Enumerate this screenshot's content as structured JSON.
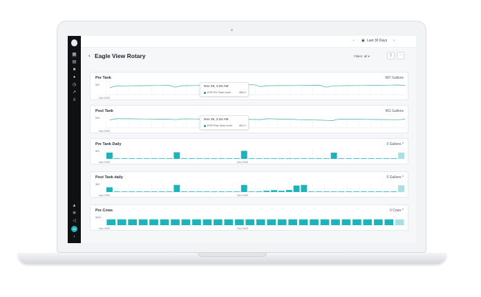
{
  "sidebar": {
    "icons": [
      "grid-icon",
      "inbox-icon",
      "alert-icon",
      "map-pin-icon",
      "clock-icon",
      "trend-icon",
      "list-icon",
      "bell-icon",
      "settings-icon",
      "megaphone-icon"
    ],
    "avatar": "JH",
    "expand": "›"
  },
  "topbar": {
    "range_label": "Last 30 Days",
    "prev": "‹",
    "next": "›"
  },
  "header": {
    "back": "‹",
    "title": "Eagle View Rotary",
    "filter_label": "Filters: all ▾"
  },
  "cards": [
    {
      "title": "Pre Tank",
      "value": "687 Gallons",
      "ytick": "800",
      "xticks": [
        "Nov 2020"
      ],
      "tooltip": {
        "time": "Nov 26, 2:20 AM",
        "label": "EVR Pre Tank Level",
        "value": "495.0"
      }
    },
    {
      "title": "Post Tank",
      "value": "401 Gallons",
      "ytick": "500",
      "xticks": [
        "Nov 2020"
      ],
      "tooltip": {
        "time": "Nov 26, 2:20 AM",
        "label": "EVR Post Tank Level",
        "value": "401.0"
      }
    },
    {
      "title": "Pre Tank Daily",
      "value": "0 Gallons *",
      "ytick": "800",
      "xticks": [
        "Nov 2020",
        "Dec 2020"
      ]
    },
    {
      "title": "Post Tank daily",
      "value": "0 Gallons *",
      "ytick": "380",
      "xticks": [
        "Nov 2020",
        "Dec 2020"
      ]
    },
    {
      "title": "Pre Cows",
      "value": "0 Cows *",
      "ytick": "8000",
      "xticks": [
        "Nov 2020",
        "Dec 2020"
      ]
    }
  ],
  "chart_data": [
    {
      "type": "line",
      "title": "Pre Tank",
      "ylim": [
        0,
        800
      ],
      "series": [
        {
          "values": [
            560,
            700,
            705,
            711,
            716,
            722,
            727,
            733,
            738,
            744,
            600,
            714,
            722,
            729,
            736,
            743,
            751,
            758,
            765,
            772,
            779,
            786,
            793,
            640,
            713,
            718,
            723,
            728,
            733,
            738,
            743,
            748,
            753,
            600,
            703,
            710,
            717,
            724,
            731,
            738,
            745,
            752,
            759,
            766,
            773,
            740
          ]
        }
      ]
    },
    {
      "type": "line",
      "title": "Post Tank",
      "ylim": [
        0,
        500
      ],
      "series": [
        {
          "values": [
            395,
            455,
            452,
            449,
            446,
            443,
            440,
            437,
            434,
            431,
            410,
            448,
            445,
            442,
            439,
            436,
            433,
            430,
            427,
            424,
            421,
            418,
            415,
            412,
            455,
            446,
            437,
            428,
            419,
            410,
            401,
            392,
            383,
            374,
            365,
            440,
            436,
            432,
            428,
            424,
            420,
            416,
            412,
            408,
            404,
            430
          ]
        }
      ]
    },
    {
      "type": "bar",
      "title": "Pre Tank Daily",
      "ylim": [
        0,
        800
      ],
      "values": [
        650,
        10,
        10,
        10,
        10,
        10,
        10,
        10,
        10,
        680,
        10,
        10,
        10,
        10,
        10,
        10,
        10,
        10,
        830,
        10,
        10,
        10,
        10,
        10,
        10,
        10,
        10,
        10,
        10,
        10,
        640,
        10,
        10,
        10,
        10,
        10,
        10,
        10,
        10,
        650
      ],
      "last_highlight": true
    },
    {
      "type": "bar",
      "title": "Post Tank daily",
      "ylim": [
        0,
        380
      ],
      "values": [
        230,
        10,
        10,
        10,
        10,
        10,
        10,
        10,
        10,
        350,
        10,
        10,
        10,
        10,
        10,
        10,
        10,
        10,
        350,
        10,
        30,
        60,
        90,
        60,
        100,
        320,
        350,
        10,
        10,
        10,
        10,
        10,
        10,
        10,
        10,
        10,
        10,
        10,
        10,
        330
      ],
      "last_highlight": true
    },
    {
      "type": "bar",
      "title": "Pre Cows",
      "ylim": [
        0,
        8000
      ],
      "values": [
        6000,
        6000,
        6000,
        6000,
        6000,
        6000,
        6000,
        6000,
        6000,
        6000,
        6000,
        6000,
        6000,
        6000,
        6000,
        6000,
        6000,
        6000,
        6000,
        6000,
        6000,
        6000,
        6000,
        6000,
        6000,
        6000,
        6000,
        6000
      ],
      "last_highlight": true
    }
  ],
  "colors": {
    "accent": "#1eb2bb",
    "accent_light": "#a9dfe3",
    "line": "#3da7b0",
    "grid": "#eef0f2"
  }
}
